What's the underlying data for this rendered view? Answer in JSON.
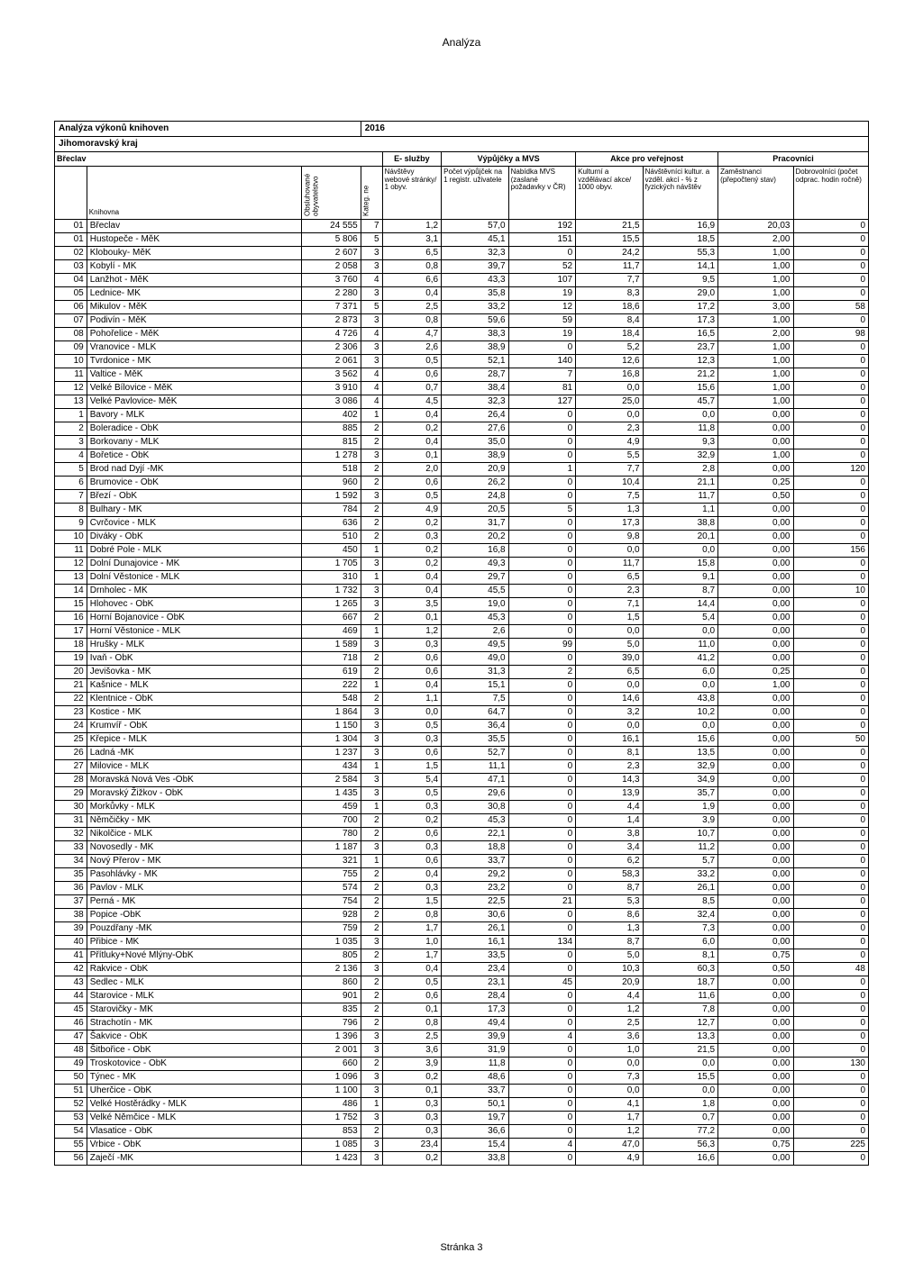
{
  "page": {
    "top_label": "Analýza",
    "footer": "Stránka 3",
    "title": "Analýza výkonů knihoven",
    "year": "2016",
    "subtitle1": "Jihomoravský kraj",
    "subtitle2": "Břeclav",
    "groups": {
      "g1": "E- služby",
      "g2": "Výpůjčky a MVS",
      "g3": "Akce pro veřejnost",
      "g4": "Pracovníci"
    },
    "headers": {
      "h_idx": "",
      "h_lib": "Knihovna",
      "h_pop": "Obsluhované obyvatelstvo",
      "h_kat": "Kateg. ne",
      "h1": "Návštěvy webové stránky/ 1 obyv.",
      "h2": "Počet výpůjček na 1 registr. uživatele",
      "h3": "Nabídka MVS (zaslané požadavky v ČR)",
      "h4": "Kulturní a vzdělávací akce/ 1000 obyv.",
      "h5": "Návštěvníci kultur. a vzděl. akcí - % z fyzických návštěv",
      "h6": "Zaměstnanci (přepočtený stav)",
      "h7": "Dobrovolníci (počet odprac. hodin ročně)"
    },
    "rows": [
      [
        "01",
        "Břeclav",
        "24 555",
        "7",
        "1,2",
        "57,0",
        "192",
        "21,5",
        "16,9",
        "20,03",
        "0"
      ],
      [
        "01",
        "Hustopeče - MěK",
        "5 806",
        "5",
        "3,1",
        "45,1",
        "151",
        "15,5",
        "18,5",
        "2,00",
        "0"
      ],
      [
        "02",
        "Klobouky- MěK",
        "2 607",
        "3",
        "6,5",
        "32,3",
        "0",
        "24,2",
        "55,3",
        "1,00",
        "0"
      ],
      [
        "03",
        "Kobylí - MK",
        "2 058",
        "3",
        "0,8",
        "39,7",
        "52",
        "11,7",
        "14,1",
        "1,00",
        "0"
      ],
      [
        "04",
        "Lanžhot - MěK",
        "3 760",
        "4",
        "6,6",
        "43,3",
        "107",
        "7,7",
        "9,5",
        "1,00",
        "0"
      ],
      [
        "05",
        "Lednice- MK",
        "2 280",
        "3",
        "0,4",
        "35,8",
        "19",
        "8,3",
        "29,0",
        "1,00",
        "0"
      ],
      [
        "06",
        "Mikulov - MěK",
        "7 371",
        "5",
        "2,5",
        "33,2",
        "12",
        "18,6",
        "17,2",
        "3,00",
        "58"
      ],
      [
        "07",
        "Podivín - MěK",
        "2 873",
        "3",
        "0,8",
        "59,6",
        "59",
        "8,4",
        "17,3",
        "1,00",
        "0"
      ],
      [
        "08",
        "Pohořelice - MěK",
        "4 726",
        "4",
        "4,7",
        "38,3",
        "19",
        "18,4",
        "16,5",
        "2,00",
        "98"
      ],
      [
        "09",
        "Vranovice - MLK",
        "2 306",
        "3",
        "2,6",
        "38,9",
        "0",
        "5,2",
        "23,7",
        "1,00",
        "0"
      ],
      [
        "10",
        "Tvrdonice - MK",
        "2 061",
        "3",
        "0,5",
        "52,1",
        "140",
        "12,6",
        "12,3",
        "1,00",
        "0"
      ],
      [
        "11",
        "Valtice - MěK",
        "3 562",
        "4",
        "0,6",
        "28,7",
        "7",
        "16,8",
        "21,2",
        "1,00",
        "0"
      ],
      [
        "12",
        "Velké Bílovice - MěK",
        "3 910",
        "4",
        "0,7",
        "38,4",
        "81",
        "0,0",
        "15,6",
        "1,00",
        "0"
      ],
      [
        "13",
        "Velké Pavlovice- MěK",
        "3 086",
        "4",
        "4,5",
        "32,3",
        "127",
        "25,0",
        "45,7",
        "1,00",
        "0"
      ],
      [
        "1",
        "Bavory - MLK",
        "402",
        "1",
        "0,4",
        "26,4",
        "0",
        "0,0",
        "0,0",
        "0,00",
        "0"
      ],
      [
        "2",
        "Boleradice - ObK",
        "885",
        "2",
        "0,2",
        "27,6",
        "0",
        "2,3",
        "11,8",
        "0,00",
        "0"
      ],
      [
        "3",
        "Borkovany - MLK",
        "815",
        "2",
        "0,4",
        "35,0",
        "0",
        "4,9",
        "9,3",
        "0,00",
        "0"
      ],
      [
        "4",
        "Bořetice - ObK",
        "1 278",
        "3",
        "0,1",
        "38,9",
        "0",
        "5,5",
        "32,9",
        "1,00",
        "0"
      ],
      [
        "5",
        "Brod nad Dyjí -MK",
        "518",
        "2",
        "2,0",
        "20,9",
        "1",
        "7,7",
        "2,8",
        "0,00",
        "120"
      ],
      [
        "6",
        "Brumovice - ObK",
        "960",
        "2",
        "0,6",
        "26,2",
        "0",
        "10,4",
        "21,1",
        "0,25",
        "0"
      ],
      [
        "7",
        "Březí - ObK",
        "1 592",
        "3",
        "0,5",
        "24,8",
        "0",
        "7,5",
        "11,7",
        "0,50",
        "0"
      ],
      [
        "8",
        "Bulhary - MK",
        "784",
        "2",
        "4,9",
        "20,5",
        "5",
        "1,3",
        "1,1",
        "0,00",
        "0"
      ],
      [
        "9",
        "Cvrčovice - MLK",
        "636",
        "2",
        "0,2",
        "31,7",
        "0",
        "17,3",
        "38,8",
        "0,00",
        "0"
      ],
      [
        "10",
        "Diváky - ObK",
        "510",
        "2",
        "0,3",
        "20,2",
        "0",
        "9,8",
        "20,1",
        "0,00",
        "0"
      ],
      [
        "11",
        "Dobré Pole - MLK",
        "450",
        "1",
        "0,2",
        "16,8",
        "0",
        "0,0",
        "0,0",
        "0,00",
        "156"
      ],
      [
        "12",
        "Dolní Dunajovice - MK",
        "1 705",
        "3",
        "0,2",
        "49,3",
        "0",
        "11,7",
        "15,8",
        "0,00",
        "0"
      ],
      [
        "13",
        "Dolní Věstonice - MLK",
        "310",
        "1",
        "0,4",
        "29,7",
        "0",
        "6,5",
        "9,1",
        "0,00",
        "0"
      ],
      [
        "14",
        "Drnholec - MK",
        "1 732",
        "3",
        "0,4",
        "45,5",
        "0",
        "2,3",
        "8,7",
        "0,00",
        "10"
      ],
      [
        "15",
        "Hlohovec - ObK",
        "1 265",
        "3",
        "3,5",
        "19,0",
        "0",
        "7,1",
        "14,4",
        "0,00",
        "0"
      ],
      [
        "16",
        "Horní Bojanovice - ObK",
        "667",
        "2",
        "0,1",
        "45,3",
        "0",
        "1,5",
        "5,4",
        "0,00",
        "0"
      ],
      [
        "17",
        "Horní Věstonice - MLK",
        "469",
        "1",
        "1,2",
        "2,6",
        "0",
        "0,0",
        "0,0",
        "0,00",
        "0"
      ],
      [
        "18",
        "Hrušky - MLK",
        "1 589",
        "3",
        "0,3",
        "49,5",
        "99",
        "5,0",
        "11,0",
        "0,00",
        "0"
      ],
      [
        "19",
        "Ivaň - ObK",
        "718",
        "2",
        "0,6",
        "49,0",
        "0",
        "39,0",
        "41,2",
        "0,00",
        "0"
      ],
      [
        "20",
        "Jevišovka - MK",
        "619",
        "2",
        "0,6",
        "31,3",
        "2",
        "6,5",
        "6,0",
        "0,25",
        "0"
      ],
      [
        "21",
        "Kašnice - MLK",
        "222",
        "1",
        "0,4",
        "15,1",
        "0",
        "0,0",
        "0,0",
        "1,00",
        "0"
      ],
      [
        "22",
        "Klentnice - ObK",
        "548",
        "2",
        "1,1",
        "7,5",
        "0",
        "14,6",
        "43,8",
        "0,00",
        "0"
      ],
      [
        "23",
        "Kostice - MK",
        "1 864",
        "3",
        "0,0",
        "64,7",
        "0",
        "3,2",
        "10,2",
        "0,00",
        "0"
      ],
      [
        "24",
        "Krumvíř - ObK",
        "1 150",
        "3",
        "0,5",
        "36,4",
        "0",
        "0,0",
        "0,0",
        "0,00",
        "0"
      ],
      [
        "25",
        "Křepice - MLK",
        "1 304",
        "3",
        "0,3",
        "35,5",
        "0",
        "16,1",
        "15,6",
        "0,00",
        "50"
      ],
      [
        "26",
        "Ladná -MK",
        "1 237",
        "3",
        "0,6",
        "52,7",
        "0",
        "8,1",
        "13,5",
        "0,00",
        "0"
      ],
      [
        "27",
        "Milovice - MLK",
        "434",
        "1",
        "1,5",
        "11,1",
        "0",
        "2,3",
        "32,9",
        "0,00",
        "0"
      ],
      [
        "28",
        "Moravská Nová Ves -ObK",
        "2 584",
        "3",
        "5,4",
        "47,1",
        "0",
        "14,3",
        "34,9",
        "0,00",
        "0"
      ],
      [
        "29",
        "Moravský Žižkov - ObK",
        "1 435",
        "3",
        "0,5",
        "29,6",
        "0",
        "13,9",
        "35,7",
        "0,00",
        "0"
      ],
      [
        "30",
        "Morkůvky - MLK",
        "459",
        "1",
        "0,3",
        "30,8",
        "0",
        "4,4",
        "1,9",
        "0,00",
        "0"
      ],
      [
        "31",
        "Němčičky - MK",
        "700",
        "2",
        "0,2",
        "45,3",
        "0",
        "1,4",
        "3,9",
        "0,00",
        "0"
      ],
      [
        "32",
        "Nikolčice - MLK",
        "780",
        "2",
        "0,6",
        "22,1",
        "0",
        "3,8",
        "10,7",
        "0,00",
        "0"
      ],
      [
        "33",
        "Novosedly - MK",
        "1 187",
        "3",
        "0,3",
        "18,8",
        "0",
        "3,4",
        "11,2",
        "0,00",
        "0"
      ],
      [
        "34",
        "Nový Přerov - MK",
        "321",
        "1",
        "0,6",
        "33,7",
        "0",
        "6,2",
        "5,7",
        "0,00",
        "0"
      ],
      [
        "35",
        "Pasohlávky - MK",
        "755",
        "2",
        "0,4",
        "29,2",
        "0",
        "58,3",
        "33,2",
        "0,00",
        "0"
      ],
      [
        "36",
        "Pavlov - MLK",
        "574",
        "2",
        "0,3",
        "23,2",
        "0",
        "8,7",
        "26,1",
        "0,00",
        "0"
      ],
      [
        "37",
        "Perná - MK",
        "754",
        "2",
        "1,5",
        "22,5",
        "21",
        "5,3",
        "8,5",
        "0,00",
        "0"
      ],
      [
        "38",
        "Popice -ObK",
        "928",
        "2",
        "0,8",
        "30,6",
        "0",
        "8,6",
        "32,4",
        "0,00",
        "0"
      ],
      [
        "39",
        "Pouzdřany -MK",
        "759",
        "2",
        "1,7",
        "26,1",
        "0",
        "1,3",
        "7,3",
        "0,00",
        "0"
      ],
      [
        "40",
        "Přibice - MK",
        "1 035",
        "3",
        "1,0",
        "16,1",
        "134",
        "8,7",
        "6,0",
        "0,00",
        "0"
      ],
      [
        "41",
        "Přítluky+Nové Mlýny-ObK",
        "805",
        "2",
        "1,7",
        "33,5",
        "0",
        "5,0",
        "8,1",
        "0,75",
        "0"
      ],
      [
        "42",
        "Rakvice - ObK",
        "2 136",
        "3",
        "0,4",
        "23,4",
        "0",
        "10,3",
        "60,3",
        "0,50",
        "48"
      ],
      [
        "43",
        "Sedlec - MLK",
        "860",
        "2",
        "0,5",
        "23,1",
        "45",
        "20,9",
        "18,7",
        "0,00",
        "0"
      ],
      [
        "44",
        "Starovice - MLK",
        "901",
        "2",
        "0,6",
        "28,4",
        "0",
        "4,4",
        "11,6",
        "0,00",
        "0"
      ],
      [
        "45",
        "Starovičky - MK",
        "835",
        "2",
        "0,1",
        "17,3",
        "0",
        "1,2",
        "7,8",
        "0,00",
        "0"
      ],
      [
        "46",
        "Strachotín - MK",
        "796",
        "2",
        "0,8",
        "49,4",
        "0",
        "2,5",
        "12,7",
        "0,00",
        "0"
      ],
      [
        "47",
        "Šakvice - ObK",
        "1 396",
        "3",
        "2,5",
        "39,9",
        "4",
        "3,6",
        "13,3",
        "0,00",
        "0"
      ],
      [
        "48",
        "Šitbořice - ObK",
        "2 001",
        "3",
        "3,6",
        "31,9",
        "0",
        "1,0",
        "21,5",
        "0,00",
        "0"
      ],
      [
        "49",
        "Troskotovice - ObK",
        "660",
        "2",
        "3,9",
        "11,8",
        "0",
        "0,0",
        "0,0",
        "0,00",
        "130"
      ],
      [
        "50",
        "Týnec - MK",
        "1 096",
        "3",
        "0,2",
        "48,6",
        "0",
        "7,3",
        "15,5",
        "0,00",
        "0"
      ],
      [
        "51",
        "Uherčice - ObK",
        "1 100",
        "3",
        "0,1",
        "33,7",
        "0",
        "0,0",
        "0,0",
        "0,00",
        "0"
      ],
      [
        "52",
        "Velké Hostěrádky - MLK",
        "486",
        "1",
        "0,3",
        "50,1",
        "0",
        "4,1",
        "1,8",
        "0,00",
        "0"
      ],
      [
        "53",
        "Velké Němčice - MLK",
        "1 752",
        "3",
        "0,3",
        "19,7",
        "0",
        "1,7",
        "0,7",
        "0,00",
        "0"
      ],
      [
        "54",
        "Vlasatice - ObK",
        "853",
        "2",
        "0,3",
        "36,6",
        "0",
        "1,2",
        "77,2",
        "0,00",
        "0"
      ],
      [
        "55",
        "Vrbice - ObK",
        "1 085",
        "3",
        "23,4",
        "15,4",
        "4",
        "47,0",
        "56,3",
        "0,75",
        "225"
      ],
      [
        "56",
        "Zaječí -MK",
        "1 423",
        "3",
        "0,2",
        "33,8",
        "0",
        "4,9",
        "16,6",
        "0,00",
        "0"
      ]
    ]
  }
}
